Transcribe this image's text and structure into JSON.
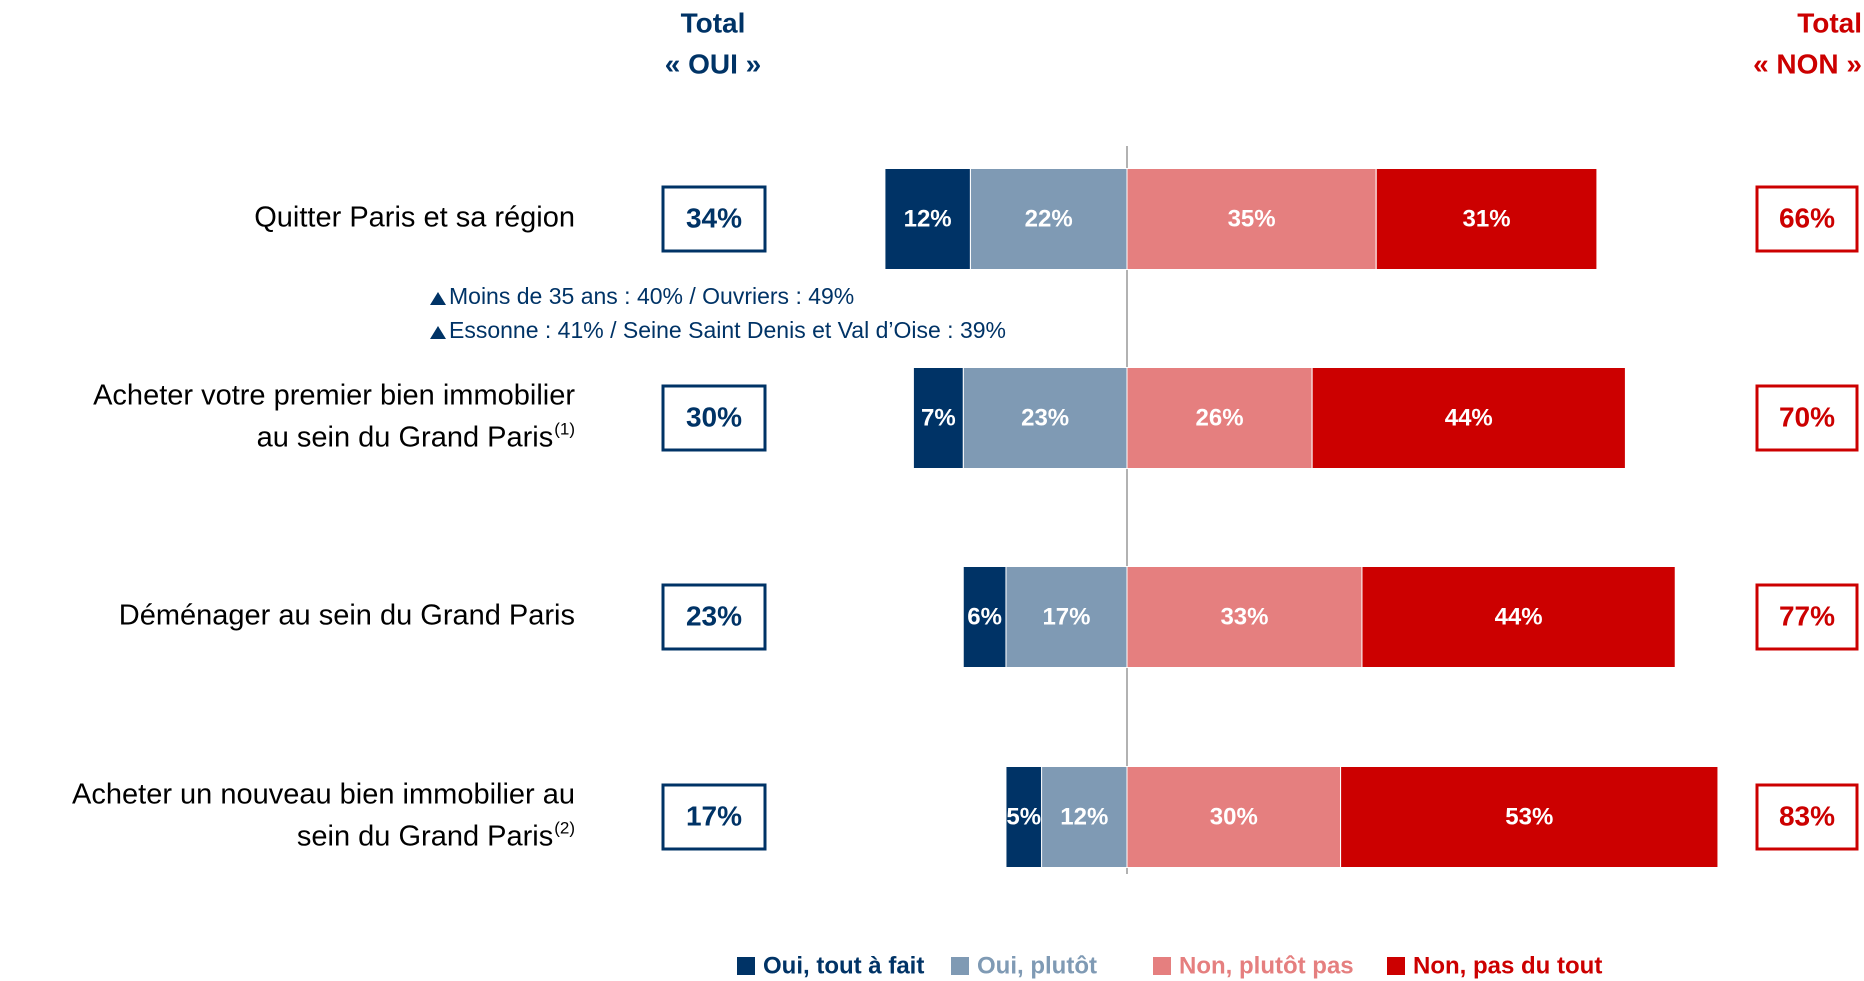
{
  "chart_data": {
    "type": "diverging_bar",
    "header_oui": [
      "Total",
      "« OUI »"
    ],
    "header_non": [
      "Total",
      "« NON »"
    ],
    "categories": [
      [
        "Quitter Paris et sa région"
      ],
      [
        "Acheter votre premier bien immobilier",
        "au sein du Grand Paris"
      ],
      [
        "Déménager au sein du Grand Paris"
      ],
      [
        "Acheter un nouveau bien immobilier au",
        "sein du Grand Paris"
      ]
    ],
    "footnotes": {
      "1": "(1)",
      "3": "(2)"
    },
    "series": [
      {
        "name": "Oui, tout à fait",
        "color": "#003366",
        "side": "left",
        "values": [
          12,
          7,
          6,
          5
        ],
        "value_labels": [
          "12%",
          "7%",
          "6%",
          "5%"
        ]
      },
      {
        "name": "Oui, plutôt",
        "color": "#7f9ab4",
        "side": "left",
        "values": [
          22,
          23,
          17,
          12
        ],
        "value_labels": [
          "22%",
          "23%",
          "17%",
          "12%"
        ]
      },
      {
        "name": "Non, plutôt pas",
        "color": "#e57f7f",
        "side": "right",
        "values": [
          35,
          26,
          33,
          30
        ],
        "value_labels": [
          "35%",
          "26%",
          "33%",
          "30%"
        ]
      },
      {
        "name": "Non, pas du tout",
        "color": "#cc0000",
        "side": "right",
        "values": [
          31,
          44,
          44,
          53
        ],
        "value_labels": [
          "31%",
          "44%",
          "44%",
          "53%"
        ]
      }
    ],
    "totals_oui": {
      "color": "#003366",
      "values": [
        34,
        30,
        23,
        17
      ],
      "value_labels": [
        "34%",
        "30%",
        "23%",
        "17%"
      ]
    },
    "totals_non": {
      "color": "#cc0000",
      "values": [
        66,
        70,
        77,
        83
      ],
      "value_labels": [
        "66%",
        "70%",
        "77%",
        "83%"
      ]
    },
    "annotations": [
      "Moins de 35 ans : 40% / Ouvriers : 49%",
      "Essonne : 41% / Seine Saint Denis et Val d’Oise : 39%"
    ]
  }
}
